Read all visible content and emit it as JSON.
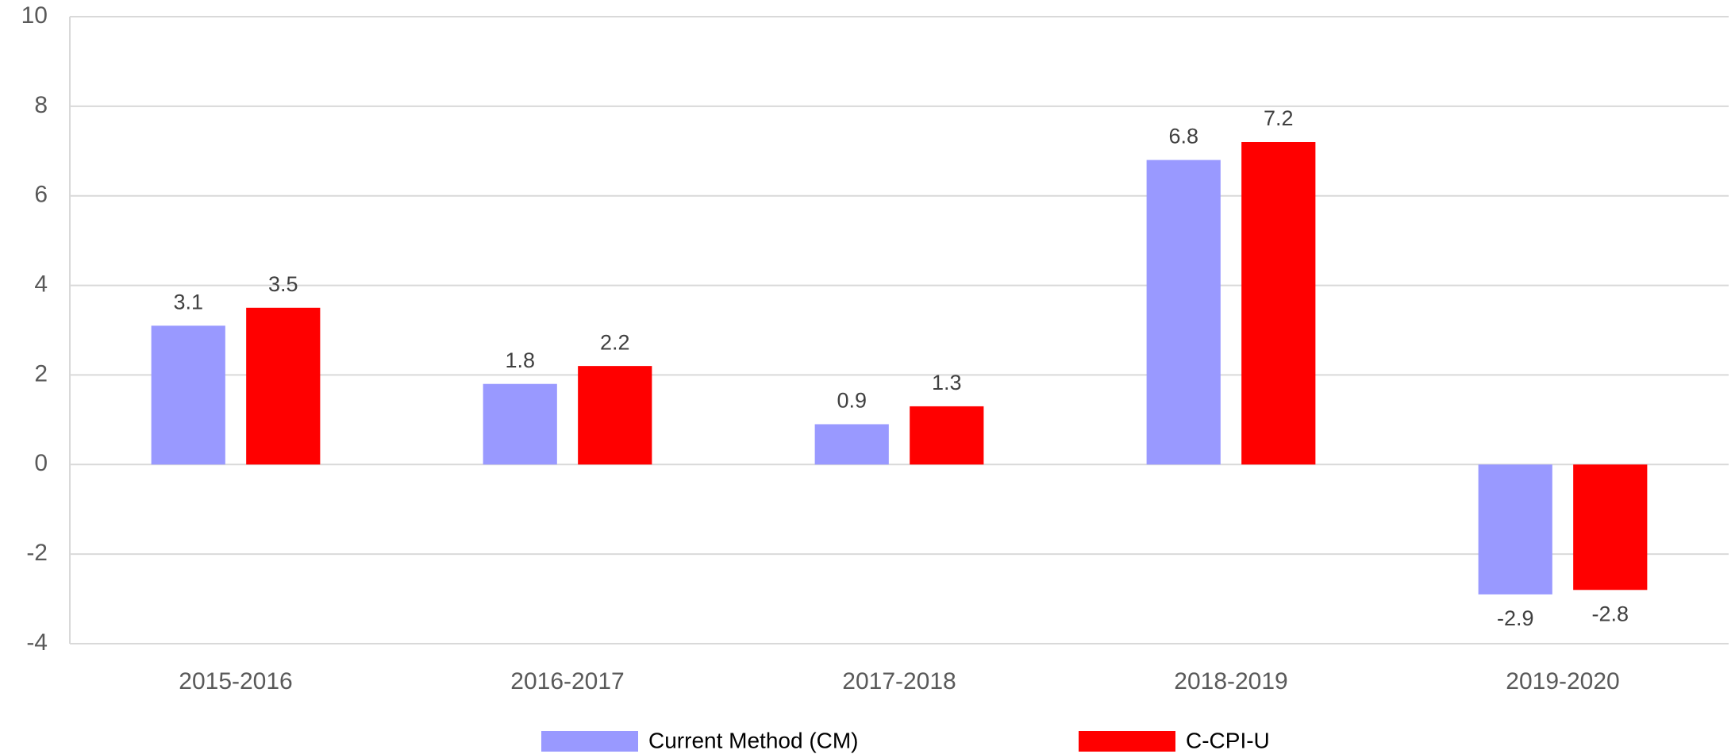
{
  "chart_data": {
    "type": "bar",
    "categories": [
      "2015-2016",
      "2016-2017",
      "2017-2018",
      "2018-2019",
      "2019-2020"
    ],
    "series": [
      {
        "name": "Current Method (CM)",
        "color": "#9999ff",
        "values": [
          3.1,
          1.8,
          0.9,
          6.8,
          -2.9
        ]
      },
      {
        "name": "C-CPI-U",
        "color": "#ff0000",
        "values": [
          3.5,
          2.2,
          1.3,
          7.2,
          -2.8
        ]
      }
    ],
    "ylim": [
      -4,
      10
    ],
    "yticks": [
      -4,
      -2,
      0,
      2,
      4,
      6,
      8,
      10
    ],
    "grid": true,
    "legend": "bottom"
  }
}
